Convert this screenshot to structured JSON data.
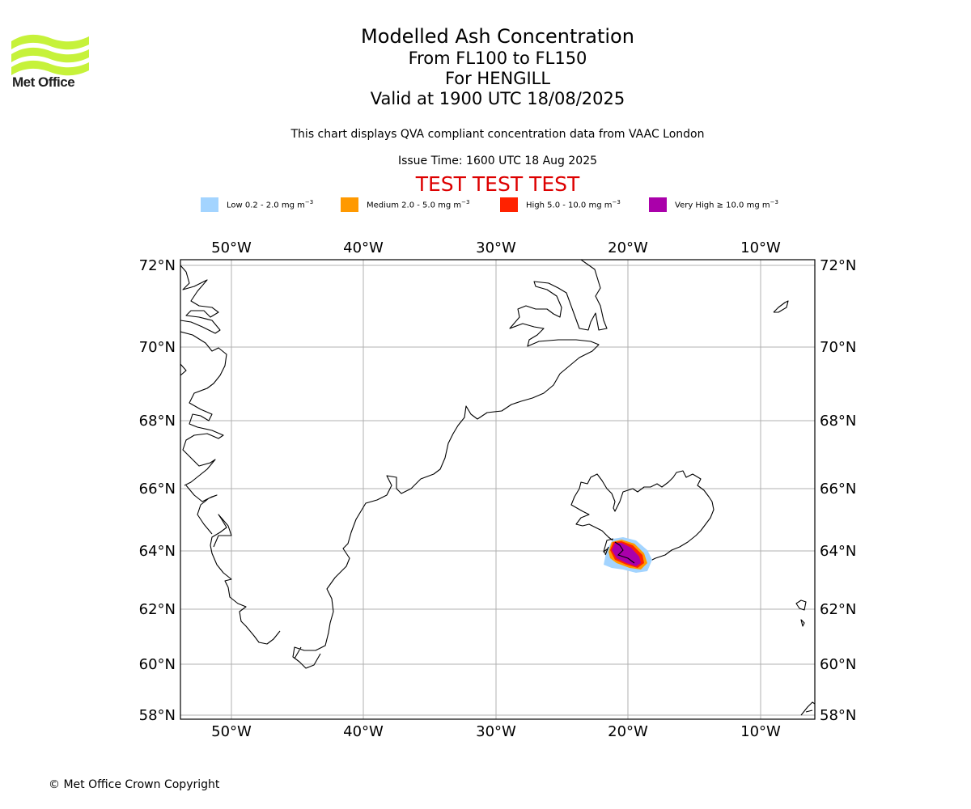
{
  "brand": {
    "logo_text": "Met Office",
    "logo_color": "#c6f23a"
  },
  "title": {
    "line1": "Modelled Ash Concentration",
    "line2": "From FL100 to FL150",
    "line3": "For HENGILL",
    "line4": "Valid at 1900 UTC 18/08/2025"
  },
  "subtitle": "This chart displays QVA compliant concentration data from VAAC London",
  "issue_time": "Issue Time: 1600 UTC 18 Aug 2025",
  "test_banner": "TEST TEST TEST",
  "legend": [
    {
      "label": "Low 0.2 - 2.0 mg m",
      "sup": "−3",
      "color": "#a3d4ff"
    },
    {
      "label": "Medium 2.0 - 5.0 mg m",
      "sup": "−3",
      "color": "#ff9900"
    },
    {
      "label": "High 5.0 - 10.0 mg m",
      "sup": "−3",
      "color": "#ff2200"
    },
    {
      "label": "Very High  ≥  10.0 mg m",
      "sup": "−3",
      "color": "#aa00aa"
    }
  ],
  "map": {
    "lon_ticks": [
      "50°W",
      "40°W",
      "30°W",
      "20°W",
      "10°W"
    ],
    "lat_ticks": [
      "72°N",
      "70°N",
      "68°N",
      "66°N",
      "64°N",
      "62°N",
      "60°N",
      "58°N"
    ],
    "extent": {
      "lon": [
        -54,
        -6
      ],
      "lat": [
        58,
        72
      ]
    },
    "volcano": "HENGILL"
  },
  "copyright": "© Met Office Crown Copyright"
}
